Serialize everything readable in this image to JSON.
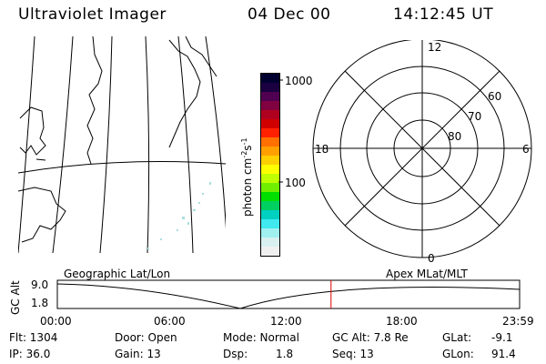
{
  "header": {
    "instrument": "Ultraviolet Imager",
    "date": "04 Dec 00",
    "time": "14:12:45 UT"
  },
  "colorbar": {
    "unit_label": "photon cm^-2 s^-1",
    "ticks": [
      "1000",
      "100"
    ],
    "colors": [
      "#000030",
      "#1a0040",
      "#500050",
      "#800040",
      "#b00020",
      "#d00000",
      "#ff2000",
      "#ff7000",
      "#ffa000",
      "#ffd000",
      "#ffff00",
      "#c0ff00",
      "#70f000",
      "#00e000",
      "#00d060",
      "#00d0c0",
      "#40e8f0",
      "#a0f0f0",
      "#d8f0f0",
      "#f0f0f0"
    ]
  },
  "polar": {
    "mlt_labels": {
      "top": "12",
      "left": "18",
      "right": "6",
      "bottom": "0"
    },
    "lat_labels": [
      "60",
      "70",
      "80"
    ]
  },
  "timeline": {
    "left_label": "Geographic Lat/Lon",
    "right_label": "Apex MLat/MLT",
    "axis_label": "GC Alt",
    "y_ticks": [
      "9.0",
      "1.8"
    ],
    "x_ticks": [
      "00:00",
      "06:00",
      "12:00",
      "18:00",
      "23:59"
    ],
    "current_marker_hour": 14.21
  },
  "status": {
    "flt": "Flt: 1304",
    "ip": "IP: 36.0",
    "door": "Door: Open",
    "gain": "Gain: 13",
    "mode": "Mode: Normal",
    "dsp_label": "Dsp:",
    "dsp_value": "1.8",
    "gcalt": "GC Alt: 7.8 Re",
    "seq": "Seq: 13",
    "glat_label": "GLat:",
    "glat_value": "-9.1",
    "glon_label": "GLon:",
    "glon_value": "91.4"
  }
}
